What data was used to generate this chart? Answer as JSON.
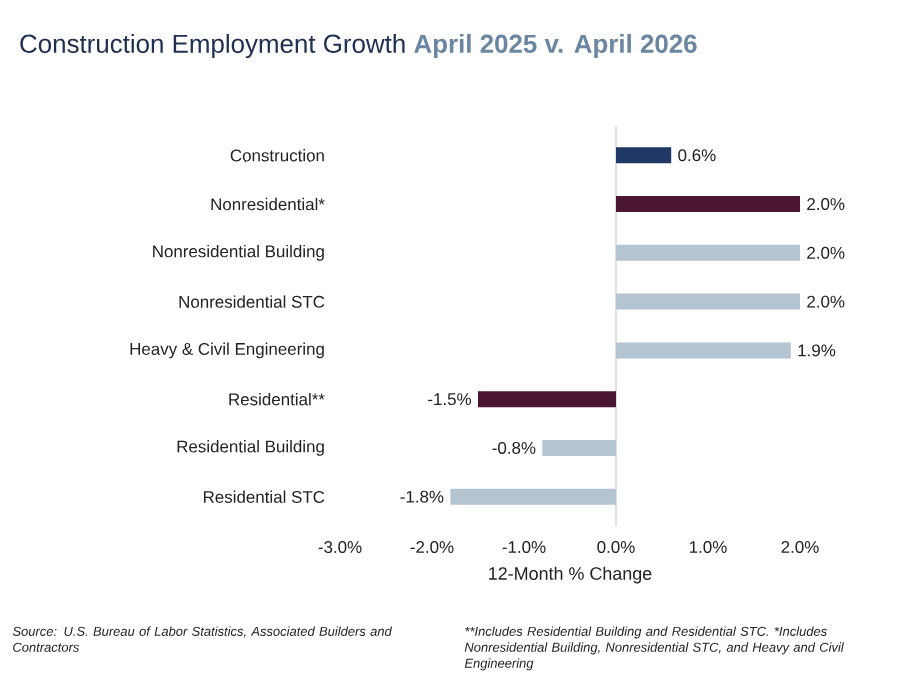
{
  "chart_data": {
    "type": "bar",
    "orientation": "horizontal",
    "title": "Construction Employment Growth",
    "subtitle": "April 2025 v. April 2026",
    "xlabel": "12-Month % Change",
    "categories": [
      "Construction",
      "Nonresidential*",
      "Nonresidential Building",
      "Nonresidential STC",
      "Heavy & Civil Engineering",
      "Residential**",
      "Residential Building",
      "Residential STC"
    ],
    "values": [
      0.6,
      2.0,
      2.0,
      2.0,
      1.9,
      -1.5,
      -0.8,
      -1.8
    ],
    "colors": [
      "#1f3864",
      "#4a1530",
      "#b4c4d0",
      "#b4c4d0",
      "#b4c4d0",
      "#4a1530",
      "#b4c4d0",
      "#b4c4d0"
    ],
    "value_labels": [
      "0.6%",
      "2.0%",
      "2.0%",
      "2.0%",
      "1.9%",
      "-1.5%",
      "-0.8%",
      "-1.8%"
    ],
    "xlim": [
      -3,
      2
    ],
    "xticks": [
      {
        "value": -3,
        "label": "-3.0%"
      },
      {
        "value": -2,
        "label": "-2.0%"
      },
      {
        "value": -1,
        "label": "-1.0%"
      },
      {
        "value": 0,
        "label": "0.0%"
      },
      {
        "value": 1,
        "label": "1.0%"
      },
      {
        "value": 2,
        "label": "2.0%"
      }
    ],
    "annotations": [
      "Source: U.S. Bureau of Labor Statistics, Associated Builders and Contractors",
      "**Includes Residential Building and Residential STC. *Includes Nonresidential Building, Nonresidential STC, and Heavy and Civil Engineering"
    ]
  }
}
